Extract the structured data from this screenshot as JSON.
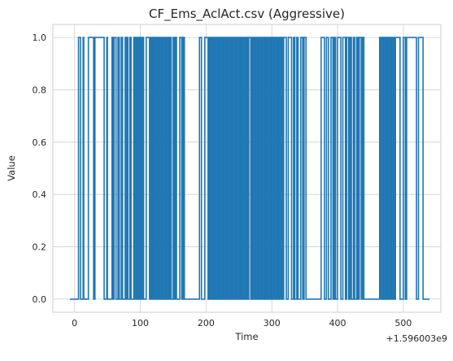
{
  "chart_data": {
    "type": "line",
    "drawstyle": "steps-post",
    "title": "CF_Ems_AclAct.csv (Aggressive)",
    "xlabel": "Time",
    "ylabel": "Value",
    "x_offset_text": "+1.596003e9",
    "xlim": [
      -33,
      557
    ],
    "ylim": [
      -0.05,
      1.05
    ],
    "xticks": [
      0,
      100,
      200,
      300,
      400,
      500
    ],
    "yticks": [
      0.0,
      0.2,
      0.4,
      0.6,
      0.8,
      1.0
    ],
    "xtick_labels": [
      "0",
      "100",
      "200",
      "300",
      "400",
      "500"
    ],
    "ytick_labels": [
      "0.0",
      "0.2",
      "0.4",
      "0.6",
      "0.8",
      "1.0"
    ],
    "grid": true,
    "series": [
      {
        "color": "#1f77b4",
        "x": [
          -7,
          6,
          9,
          13,
          14,
          21,
          29,
          31,
          43,
          45,
          49,
          50,
          57,
          58,
          60,
          63,
          66,
          68,
          71,
          73,
          77,
          78,
          80,
          81,
          84,
          86,
          90,
          91,
          93,
          95,
          97,
          98,
          99,
          101,
          103,
          105,
          109,
          111,
          113,
          114,
          116,
          118,
          119,
          120,
          122,
          124,
          125,
          126,
          128,
          130,
          132,
          133,
          135,
          137,
          139,
          141,
          143,
          144,
          145,
          147,
          150,
          152,
          153,
          155,
          160,
          163,
          165,
          167,
          190,
          193,
          198,
          203,
          205,
          207,
          208,
          209,
          211,
          213,
          215,
          217,
          219,
          221,
          222,
          224,
          226,
          227,
          229,
          231,
          233,
          234,
          236,
          238,
          240,
          242,
          243,
          245,
          247,
          249,
          251,
          252,
          254,
          255,
          257,
          259,
          261,
          263,
          265,
          268,
          270,
          272,
          274,
          276,
          278,
          280,
          282,
          284,
          286,
          288,
          289,
          290,
          292,
          293,
          295,
          297,
          298,
          299,
          300,
          302,
          303,
          305,
          306,
          308,
          310,
          312,
          314,
          316,
          318,
          322,
          325,
          330,
          333,
          335,
          338,
          340,
          344,
          347,
          349,
          352,
          375,
          380,
          383,
          386,
          390,
          393,
          395,
          397,
          400,
          405,
          408,
          412,
          414,
          417,
          419,
          421,
          424,
          426,
          429,
          431,
          433,
          436,
          438,
          440,
          464,
          466,
          468,
          470,
          472,
          474,
          476,
          478,
          480,
          482,
          484,
          486,
          488,
          495,
          500,
          503,
          505,
          520,
          523,
          530,
          540
        ],
        "y": [
          0,
          1,
          0,
          1,
          0,
          1,
          0,
          1,
          1,
          0,
          1,
          0,
          1,
          0,
          1,
          0,
          1,
          0,
          1,
          0,
          1,
          0,
          1,
          0,
          1,
          0,
          1,
          0,
          1,
          0,
          1,
          0,
          1,
          0,
          1,
          0,
          1,
          1,
          1,
          0,
          1,
          0,
          1,
          0,
          1,
          0,
          1,
          0,
          1,
          0,
          1,
          0,
          1,
          0,
          1,
          0,
          1,
          0,
          1,
          0,
          1,
          0,
          1,
          0,
          1,
          0,
          1,
          0,
          1,
          0,
          1,
          0,
          1,
          0,
          1,
          0,
          1,
          0,
          1,
          0,
          1,
          0,
          1,
          0,
          1,
          0,
          1,
          0,
          1,
          0,
          1,
          0,
          1,
          0,
          1,
          0,
          1,
          0,
          1,
          0,
          1,
          0,
          1,
          0,
          1,
          0,
          1,
          0,
          1,
          0,
          1,
          0,
          1,
          0,
          1,
          0,
          1,
          0,
          1,
          0,
          1,
          0,
          1,
          0,
          1,
          0,
          1,
          0,
          1,
          0,
          1,
          0,
          1,
          0,
          1,
          0,
          1,
          0,
          1,
          0,
          1,
          0,
          1,
          0,
          1,
          0,
          1,
          0,
          1,
          0,
          1,
          0,
          1,
          0,
          1,
          0,
          1,
          0,
          1,
          0,
          1,
          0,
          1,
          0,
          1,
          0,
          1,
          0,
          1,
          0,
          1,
          0,
          1,
          0,
          1,
          0,
          1,
          0,
          1,
          0,
          1,
          0,
          1,
          0,
          1,
          0,
          1,
          0,
          1,
          0,
          1,
          0,
          0
        ]
      }
    ]
  }
}
